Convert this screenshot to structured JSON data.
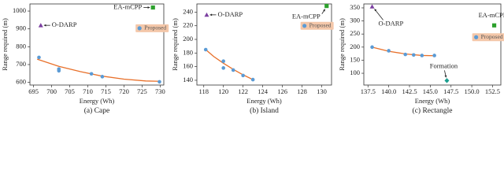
{
  "chart_data": [
    {
      "type": "scatter",
      "title": "(a) Cape",
      "x_label": "Energy (Wh)",
      "y_label": "Range required (m)",
      "xlim": [
        694,
        731
      ],
      "ylim": [
        585,
        1040
      ],
      "xticks": [
        695,
        700,
        705,
        710,
        715,
        720,
        725,
        730
      ],
      "yticks": [
        600,
        700,
        800,
        900,
        1000
      ],
      "series": [
        {
          "name": "O-DARP",
          "color": "#7b3fa0",
          "marker": "triangle",
          "x": [
            697
          ],
          "values": [
            920
          ]
        },
        {
          "name": "EA-mCPP",
          "color": "#2ca02c",
          "marker": "square",
          "x": [
            728
          ],
          "values": [
            1020
          ]
        },
        {
          "name": "Proposed",
          "color": "#5b9bd5",
          "marker": "circle",
          "x": [
            696.5,
            702,
            702,
            711,
            714,
            729.8
          ],
          "values": [
            740,
            675,
            665,
            648,
            632,
            603
          ]
        }
      ],
      "fit": {
        "color": "#e8702a",
        "x": [
          696,
          702,
          708,
          714,
          720,
          726,
          730
        ],
        "values": [
          730,
          690,
          660,
          635,
          618,
          608,
          606
        ]
      },
      "legend_color": "#f4c7a9"
    },
    {
      "type": "scatter",
      "title": "(b) Island",
      "x_label": "Energy (Wh)",
      "y_label": "Range required (m)",
      "xlim": [
        117.3,
        131
      ],
      "ylim": [
        133,
        252
      ],
      "xticks": [
        118,
        120,
        122,
        124,
        126,
        128,
        130
      ],
      "yticks": [
        140,
        160,
        180,
        200,
        220,
        240
      ],
      "series": [
        {
          "name": "O-DARP",
          "color": "#7b3fa0",
          "marker": "triangle",
          "x": [
            118.3
          ],
          "values": [
            236
          ]
        },
        {
          "name": "EA-mCPP",
          "color": "#2ca02c",
          "marker": "square",
          "x": [
            130.5
          ],
          "values": [
            249
          ]
        },
        {
          "name": "Proposed",
          "color": "#5b9bd5",
          "marker": "circle",
          "x": [
            118.2,
            120,
            120,
            121,
            122,
            123
          ],
          "values": [
            185,
            168,
            158,
            155,
            147,
            141
          ]
        }
      ],
      "fit": {
        "color": "#e8702a",
        "x": [
          118.2,
          119,
          120,
          121,
          122,
          123
        ],
        "values": [
          185,
          175,
          165,
          156,
          148,
          141
        ]
      },
      "legend_color": "#f4c7a9"
    },
    {
      "type": "scatter",
      "title": "(c) Rectangle",
      "x_label": "Energy (Wh)",
      "y_label": "Range required (m)",
      "xlim": [
        137,
        153.5
      ],
      "ylim": [
        55,
        365
      ],
      "xticks": [
        137.5,
        {
          "value": 140,
          "label": "140.0"
        },
        142.5,
        {
          "value": 145,
          "label": "145.0"
        },
        147.5,
        {
          "value": 150,
          "label": "150.0"
        },
        152.5
      ],
      "yticks": [
        100,
        150,
        200,
        250,
        300,
        350
      ],
      "series": [
        {
          "name": "O-DARP",
          "color": "#7b3fa0",
          "marker": "triangle",
          "x": [
            138
          ],
          "values": [
            355
          ]
        },
        {
          "name": "EA-mCPP",
          "color": "#2ca02c",
          "marker": "square",
          "x": [
            152.7
          ],
          "values": [
            283
          ]
        },
        {
          "name": "Formation",
          "color": "#1a9e8f",
          "marker": "diamond",
          "x": [
            147
          ],
          "values": [
            72
          ]
        },
        {
          "name": "Proposed",
          "color": "#5b9bd5",
          "marker": "circle",
          "x": [
            138,
            140,
            142,
            143,
            144,
            145.5
          ],
          "values": [
            200,
            186,
            172,
            170,
            168,
            168
          ]
        }
      ],
      "fit": {
        "color": "#e8702a",
        "x": [
          138,
          140,
          142,
          144,
          145.5
        ],
        "values": [
          200,
          184,
          174,
          168,
          167
        ]
      },
      "legend_color": "#f4c7a9"
    }
  ]
}
